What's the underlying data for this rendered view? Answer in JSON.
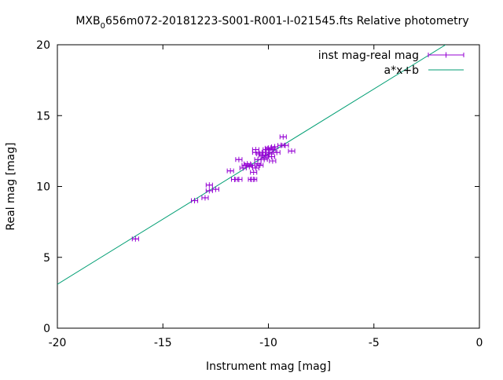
{
  "chart_data": {
    "type": "scatter",
    "title_prefix": "MXB",
    "title_sub": "0",
    "title_rest": "656m072-20181223-S001-R001-I-021545.fts Relative photometry",
    "xlabel": "Instrument mag [mag]",
    "ylabel": "Real mag [mag]",
    "xlim": [
      -20,
      0
    ],
    "ylim": [
      0,
      20
    ],
    "xticks": [
      -20,
      -15,
      -10,
      -5,
      0
    ],
    "yticks": [
      0,
      5,
      10,
      15,
      20
    ],
    "grid": false,
    "legend_position": "top-right",
    "colors": {
      "points": "#9400d3",
      "fit": "#009e73",
      "axes": "#000000"
    },
    "series": [
      {
        "name": "inst mag-real mag",
        "kind": "points-with-x-errorbars",
        "xerr": 0.15,
        "points": [
          [
            -16.3,
            6.3
          ],
          [
            -13.5,
            9.0
          ],
          [
            -13.0,
            9.2
          ],
          [
            -12.8,
            9.7
          ],
          [
            -12.8,
            10.1
          ],
          [
            -12.5,
            9.8
          ],
          [
            -11.8,
            11.1
          ],
          [
            -11.6,
            10.5
          ],
          [
            -11.4,
            10.5
          ],
          [
            -11.4,
            11.9
          ],
          [
            -11.2,
            11.3
          ],
          [
            -11.1,
            11.5
          ],
          [
            -11.0,
            11.6
          ],
          [
            -10.9,
            11.4
          ],
          [
            -10.8,
            11.5
          ],
          [
            -10.8,
            10.5
          ],
          [
            -10.7,
            10.5
          ],
          [
            -10.7,
            11.0
          ],
          [
            -10.6,
            11.3
          ],
          [
            -10.6,
            12.4
          ],
          [
            -10.6,
            12.6
          ],
          [
            -10.5,
            11.6
          ],
          [
            -10.5,
            11.9
          ],
          [
            -10.4,
            11.5
          ],
          [
            -10.4,
            12.3
          ],
          [
            -10.3,
            12.2
          ],
          [
            -10.3,
            12.4
          ],
          [
            -10.2,
            12.0
          ],
          [
            -10.2,
            11.9
          ],
          [
            -10.1,
            12.6
          ],
          [
            -10.1,
            12.2
          ],
          [
            -10.0,
            12.7
          ],
          [
            -10.0,
            12.3
          ],
          [
            -9.95,
            12.4
          ],
          [
            -9.9,
            12.7
          ],
          [
            -9.85,
            12.1
          ],
          [
            -9.8,
            11.8
          ],
          [
            -9.8,
            12.6
          ],
          [
            -9.7,
            12.8
          ],
          [
            -9.6,
            12.4
          ],
          [
            -9.4,
            12.9
          ],
          [
            -9.3,
            13.5
          ],
          [
            -9.2,
            12.9
          ],
          [
            -8.9,
            12.5
          ]
        ]
      },
      {
        "name": "a*x+b",
        "kind": "line",
        "x": [
          -20,
          -1.6
        ],
        "y": [
          3.1,
          20.0
        ]
      }
    ]
  }
}
